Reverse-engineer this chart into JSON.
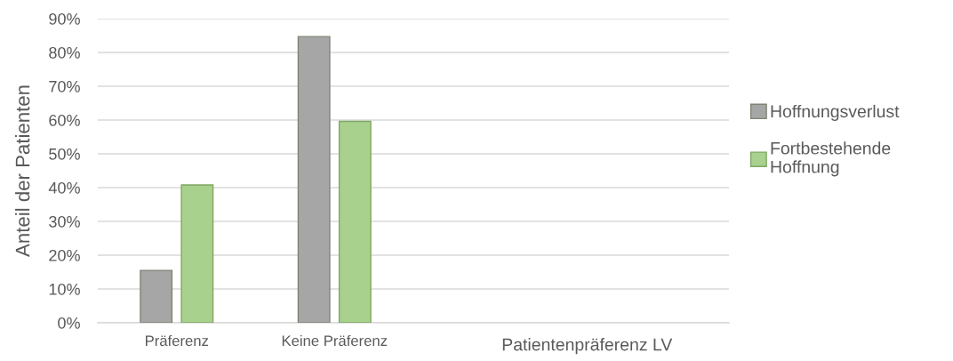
{
  "chart_data": {
    "type": "bar",
    "xlabel": "Patientenpräferenz LV",
    "ylabel": "Anteil der Patienten",
    "categories": [
      "Präferenz",
      "Keine Präferenz",
      null,
      null
    ],
    "series": [
      {
        "name": "Hoffnungsverlust",
        "color": "#a6a6a6",
        "values": [
          15.5,
          84.7,
          null,
          null
        ]
      },
      {
        "name": "Fortbestehende\nHoffnung",
        "color": "#a9d18e",
        "values": [
          40.8,
          59.6,
          null,
          null
        ]
      }
    ],
    "ylim": [
      0,
      90
    ],
    "yticks": [
      {
        "value": 0,
        "label": "0%"
      },
      {
        "value": 10,
        "label": "10%"
      },
      {
        "value": 20,
        "label": "20%"
      },
      {
        "value": 30,
        "label": "30%"
      },
      {
        "value": 40,
        "label": "40%"
      },
      {
        "value": 50,
        "label": "50%"
      },
      {
        "value": 60,
        "label": "60%"
      },
      {
        "value": 70,
        "label": "70%"
      },
      {
        "value": 80,
        "label": "80%"
      },
      {
        "value": 90,
        "label": "90%"
      }
    ],
    "grid": "y",
    "legend": "right"
  }
}
